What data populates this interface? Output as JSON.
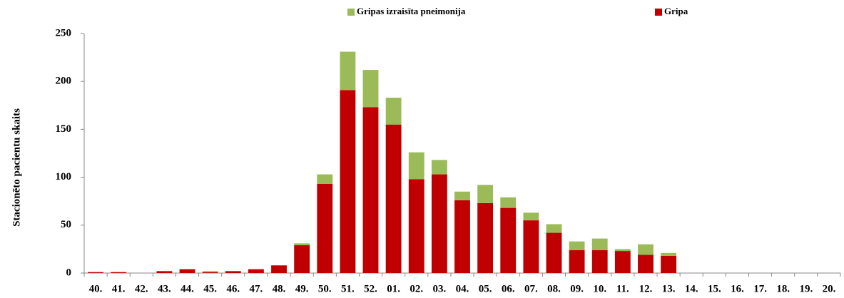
{
  "chart_data": {
    "type": "bar",
    "stacked": true,
    "y_label": "Stacionēto pacientu skaits",
    "categories": [
      "40.",
      "41.",
      "42.",
      "43.",
      "44.",
      "45.",
      "46.",
      "47.",
      "48.",
      "49.",
      "50.",
      "51.",
      "52.",
      "01.",
      "02.",
      "03.",
      "04.",
      "05.",
      "06.",
      "07.",
      "08.",
      "09.",
      "10.",
      "11.",
      "12.",
      "13.",
      "14.",
      "15.",
      "16.",
      "17.",
      "18.",
      "19.",
      "20."
    ],
    "series": [
      {
        "name": "Gripas izraisīta pneimonija",
        "color": "#9bbb59",
        "values": [
          0,
          0,
          0,
          0,
          0,
          1,
          0,
          0,
          0,
          2,
          10,
          40,
          39,
          28,
          28,
          15,
          9,
          19,
          11,
          8,
          9,
          9,
          12,
          2,
          11,
          3,
          0,
          0,
          0,
          0,
          0,
          0,
          0
        ]
      },
      {
        "name": "Gripa",
        "color": "#c00000",
        "values": [
          1,
          1,
          0,
          2,
          4,
          1,
          2,
          4,
          8,
          29,
          93,
          191,
          173,
          155,
          98,
          103,
          76,
          73,
          68,
          55,
          42,
          24,
          24,
          23,
          19,
          18,
          0,
          0,
          0,
          0,
          0,
          0,
          0
        ]
      }
    ],
    "ylim": [
      0,
      250
    ],
    "yticks": [
      0,
      50,
      100,
      150,
      200,
      250
    ],
    "grid": false
  }
}
